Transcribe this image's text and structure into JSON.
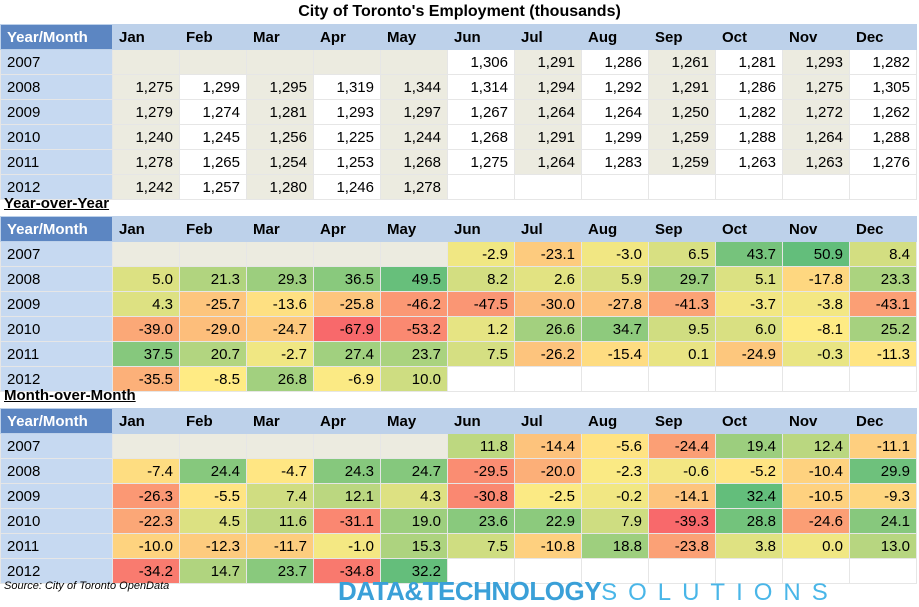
{
  "title": "City of Toronto's Employment (thousands)",
  "header_corner": "Year/Month",
  "months": [
    "Jan",
    "Feb",
    "Mar",
    "Apr",
    "May",
    "Jun",
    "Jul",
    "Aug",
    "Sep",
    "Oct",
    "Nov",
    "Dec"
  ],
  "years": [
    "2007",
    "2008",
    "2009",
    "2010",
    "2011",
    "2012"
  ],
  "sections": [
    {
      "title": "",
      "rows": [
        [
          "",
          "",
          "",
          "",
          "",
          "1,306",
          "1,291",
          "1,286",
          "1,261",
          "1,281",
          "1,293",
          "1,282"
        ],
        [
          "1,275",
          "1,299",
          "1,295",
          "1,319",
          "1,344",
          "1,314",
          "1,294",
          "1,292",
          "1,291",
          "1,286",
          "1,275",
          "1,305"
        ],
        [
          "1,279",
          "1,274",
          "1,281",
          "1,293",
          "1,297",
          "1,267",
          "1,264",
          "1,264",
          "1,250",
          "1,282",
          "1,272",
          "1,262"
        ],
        [
          "1,240",
          "1,245",
          "1,256",
          "1,225",
          "1,244",
          "1,268",
          "1,291",
          "1,299",
          "1,259",
          "1,288",
          "1,264",
          "1,288"
        ],
        [
          "1,278",
          "1,265",
          "1,254",
          "1,253",
          "1,268",
          "1,275",
          "1,264",
          "1,283",
          "1,259",
          "1,263",
          "1,263",
          "1,276"
        ],
        [
          "1,242",
          "1,257",
          "1,280",
          "1,246",
          "1,278",
          "",
          "",
          "",
          "",
          "",
          "",
          ""
        ]
      ]
    },
    {
      "title": "Year-over-Year",
      "rows": [
        [
          "",
          "",
          "",
          "",
          "",
          "-2.9",
          "-23.1",
          "-3.0",
          "6.5",
          "43.7",
          "50.9",
          "8.4"
        ],
        [
          "5.0",
          "21.3",
          "29.3",
          "36.5",
          "49.5",
          "8.2",
          "2.6",
          "5.9",
          "29.7",
          "5.1",
          "-17.8",
          "23.3"
        ],
        [
          "4.3",
          "-25.7",
          "-13.6",
          "-25.8",
          "-46.2",
          "-47.5",
          "-30.0",
          "-27.8",
          "-41.3",
          "-3.7",
          "-3.8",
          "-43.1"
        ],
        [
          "-39.0",
          "-29.0",
          "-24.7",
          "-67.9",
          "-53.2",
          "1.2",
          "26.6",
          "34.7",
          "9.5",
          "6.0",
          "-8.1",
          "25.2"
        ],
        [
          "37.5",
          "20.7",
          "-2.7",
          "27.4",
          "23.7",
          "7.5",
          "-26.2",
          "-15.4",
          "0.1",
          "-24.9",
          "-0.3",
          "-11.3"
        ],
        [
          "-35.5",
          "-8.5",
          "26.8",
          "-6.9",
          "10.0",
          "",
          "",
          "",
          "",
          "",
          "",
          ""
        ]
      ]
    },
    {
      "title": "Month-over-Month",
      "rows": [
        [
          "",
          "",
          "",
          "",
          "",
          "11.8",
          "-14.4",
          "-5.6",
          "-24.4",
          "19.4",
          "12.4",
          "-11.1"
        ],
        [
          "-7.4",
          "24.4",
          "-4.7",
          "24.3",
          "24.7",
          "-29.5",
          "-20.0",
          "-2.3",
          "-0.6",
          "-5.2",
          "-10.4",
          "29.9"
        ],
        [
          "-26.3",
          "-5.5",
          "7.4",
          "12.1",
          "4.3",
          "-30.8",
          "-2.5",
          "-0.2",
          "-14.1",
          "32.4",
          "-10.5",
          "-9.3"
        ],
        [
          "-22.3",
          "4.5",
          "11.6",
          "-31.1",
          "19.0",
          "23.6",
          "22.9",
          "7.9",
          "-39.3",
          "28.8",
          "-24.6",
          "24.1"
        ],
        [
          "-10.0",
          "-12.3",
          "-11.7",
          "-1.0",
          "15.3",
          "7.5",
          "-10.8",
          "18.8",
          "-23.8",
          "3.8",
          "0.0",
          "13.0"
        ],
        [
          "-34.2",
          "14.7",
          "23.7",
          "-34.8",
          "32.2",
          "",
          "",
          "",
          "",
          "",
          "",
          ""
        ]
      ]
    }
  ],
  "source": "Source: City of Toronto OpenData",
  "logo": {
    "part1": "DATA&TECHNOLOGY",
    "part2": "SOLUTIONS"
  },
  "colors": {
    "header_band": "#bdd1ea",
    "header_corner": "#5c86c2",
    "year_cell": "#c6d9f1",
    "shade_cell": "#ecebe0",
    "scale_low": "#f8696b",
    "scale_mid": "#ffeb84",
    "scale_high": "#63be7b"
  }
}
